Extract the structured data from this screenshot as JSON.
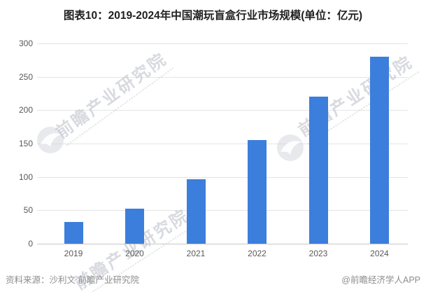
{
  "title": "图表10：2019-2024年中国潮玩盲盒行业市场规模(单位：亿元)",
  "chart_data": {
    "type": "bar",
    "title": "2019-2024年中国潮玩盲盒行业市场规模",
    "unit": "亿元",
    "categories": [
      "2019",
      "2020",
      "2021",
      "2022",
      "2023",
      "2024"
    ],
    "values": [
      32,
      52,
      97,
      155,
      220,
      280
    ],
    "ylim": [
      0,
      300
    ],
    "yticks": [
      0,
      50,
      100,
      150,
      200,
      250,
      300
    ],
    "grid": true,
    "legend_position": "none",
    "bar_color": "#3C7EDB",
    "gridline_color": "#e4e4e4",
    "axis_label_color": "#595959"
  },
  "watermark": {
    "text": "前瞻产业研究院"
  },
  "footer": {
    "source": "资料来源：沙利文 前瞻产业研究院",
    "credit": "@前瞻经济学人APP"
  }
}
